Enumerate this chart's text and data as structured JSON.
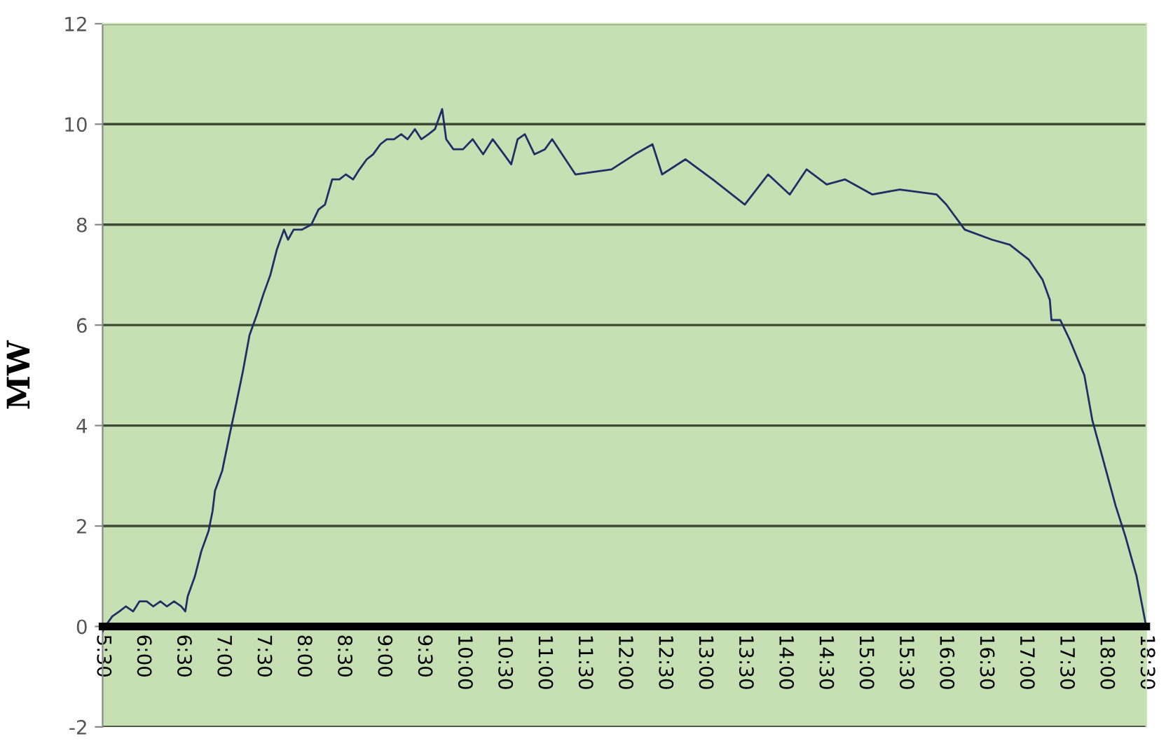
{
  "chart_data": {
    "type": "line",
    "ylabel": "MW",
    "xlim": [
      5.5,
      18.5
    ],
    "ylim": [
      -2,
      12
    ],
    "yticks": [
      -2,
      0,
      2,
      4,
      6,
      8,
      10,
      12
    ],
    "xticks": [
      {
        "value": 5.5,
        "label": "5:30"
      },
      {
        "value": 6,
        "label": "6:00"
      },
      {
        "value": 6.5,
        "label": "6:30"
      },
      {
        "value": 7,
        "label": "7:00"
      },
      {
        "value": 7.5,
        "label": "7:30"
      },
      {
        "value": 8,
        "label": "8:00"
      },
      {
        "value": 8.5,
        "label": "8:30"
      },
      {
        "value": 9,
        "label": "9:00"
      },
      {
        "value": 9.5,
        "label": "9:30"
      },
      {
        "value": 10,
        "label": "10:00"
      },
      {
        "value": 10.5,
        "label": "10:30"
      },
      {
        "value": 11,
        "label": "11:00"
      },
      {
        "value": 11.5,
        "label": "11:30"
      },
      {
        "value": 12,
        "label": "12:00"
      },
      {
        "value": 12.5,
        "label": "12:30"
      },
      {
        "value": 13,
        "label": "13:00"
      },
      {
        "value": 13.5,
        "label": "13:30"
      },
      {
        "value": 14,
        "label": "14:00"
      },
      {
        "value": 14.5,
        "label": "14:30"
      },
      {
        "value": 15,
        "label": "15:00"
      },
      {
        "value": 15.5,
        "label": "15:30"
      },
      {
        "value": 16,
        "label": "16:00"
      },
      {
        "value": 16.5,
        "label": "16:30"
      },
      {
        "value": 17,
        "label": "17:00"
      },
      {
        "value": 17.5,
        "label": "17:30"
      },
      {
        "value": 18,
        "label": "18:00"
      },
      {
        "value": 18.5,
        "label": "18:30"
      }
    ],
    "grid": "y",
    "marker": "none",
    "line_style": "solid",
    "series": [
      {
        "color": "#1f2f66",
        "x": [
          5.5,
          5.53,
          5.62,
          5.71,
          5.79,
          5.88,
          5.96,
          6.05,
          6.13,
          6.22,
          6.3,
          6.39,
          6.48,
          6.53,
          6.56,
          6.65,
          6.73,
          6.82,
          6.87,
          6.9,
          6.99,
          7.08,
          7.16,
          7.25,
          7.33,
          7.42,
          7.5,
          7.59,
          7.67,
          7.76,
          7.81,
          7.88,
          7.98,
          8.1,
          8.19,
          8.27,
          8.36,
          8.45,
          8.53,
          8.62,
          8.7,
          8.79,
          8.87,
          8.96,
          9.04,
          9.13,
          9.22,
          9.3,
          9.39,
          9.47,
          9.56,
          9.64,
          9.73,
          9.78,
          9.87,
          9.99,
          10.11,
          10.24,
          10.36,
          10.5,
          10.59,
          10.67,
          10.76,
          10.88,
          11.01,
          11.1,
          11.39,
          11.84,
          12.13,
          12.35,
          12.47,
          12.76,
          13.1,
          13.5,
          13.79,
          14.06,
          14.27,
          14.52,
          14.75,
          15.09,
          15.43,
          15.89,
          16.01,
          16.24,
          16.58,
          16.8,
          17.04,
          17.21,
          17.3,
          17.32,
          17.43,
          17.55,
          17.73,
          17.83,
          17.95,
          18.12,
          18.24,
          18.38,
          18.5
        ],
        "values": [
          -0.1,
          0,
          0.2,
          0.3,
          0.4,
          0.3,
          0.5,
          0.5,
          0.4,
          0.5,
          0.4,
          0.5,
          0.4,
          0.3,
          0.6,
          1.0,
          1.5,
          1.9,
          2.3,
          2.7,
          3.1,
          3.8,
          4.4,
          5.1,
          5.8,
          6.2,
          6.6,
          7.0,
          7.5,
          7.9,
          7.7,
          7.9,
          7.9,
          8.0,
          8.3,
          8.4,
          8.9,
          8.9,
          9.0,
          8.9,
          9.1,
          9.3,
          9.4,
          9.6,
          9.7,
          9.7,
          9.8,
          9.7,
          9.9,
          9.7,
          9.8,
          9.9,
          10.3,
          9.7,
          9.5,
          9.5,
          9.7,
          9.4,
          9.7,
          9.4,
          9.2,
          9.7,
          9.8,
          9.4,
          9.5,
          9.7,
          9.0,
          9.1,
          9.4,
          9.6,
          9.0,
          9.3,
          8.9,
          8.4,
          9.0,
          8.6,
          9.1,
          8.8,
          8.9,
          8.6,
          8.7,
          8.6,
          8.4,
          7.9,
          7.7,
          7.6,
          7.3,
          6.9,
          6.5,
          6.1,
          6.1,
          5.7,
          5.0,
          4.1,
          3.4,
          2.4,
          1.8,
          1.0,
          0
        ]
      }
    ]
  }
}
